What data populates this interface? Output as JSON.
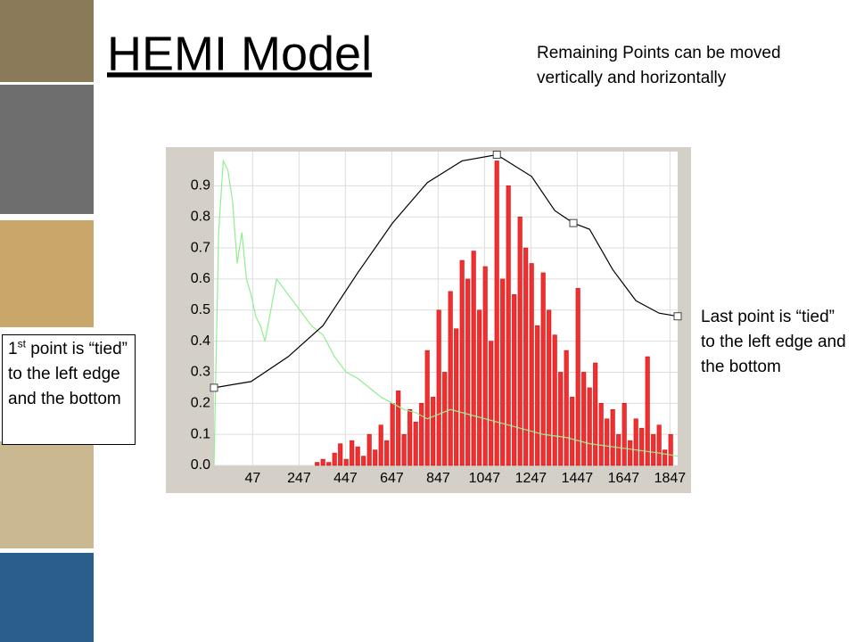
{
  "chart_data": {
    "type": "histogram-overlay",
    "title": "HEMI Model",
    "annotations": {
      "top": "Remaining Points can be moved vertically and horizontally",
      "right": "Last point is “tied” to the left edge and the bottom",
      "left_num": "1",
      "left_sup": "st",
      "left_rest": " point is “tied” to the left edge and the bottom"
    },
    "xlim": [
      -120,
      1880
    ],
    "ylim": [
      0,
      1.01
    ],
    "xticks": [
      47,
      247,
      447,
      647,
      847,
      1047,
      1247,
      1447,
      1647,
      1847
    ],
    "yticks": [
      {
        "value": 0,
        "label": "0.0"
      },
      0.1,
      0.2,
      0.3,
      0.4,
      0.5,
      0.6,
      0.7,
      0.8,
      0.9
    ],
    "grid": true,
    "bars": {
      "color": "#f03030",
      "x": [
        300,
        325,
        350,
        375,
        400,
        425,
        450,
        475,
        500,
        525,
        550,
        575,
        600,
        625,
        650,
        675,
        700,
        725,
        750,
        775,
        800,
        825,
        850,
        875,
        900,
        925,
        950,
        975,
        1000,
        1025,
        1050,
        1075,
        1100,
        1125,
        1150,
        1175,
        1200,
        1225,
        1250,
        1275,
        1300,
        1325,
        1350,
        1375,
        1400,
        1425,
        1450,
        1475,
        1500,
        1525,
        1550,
        1575,
        1600,
        1625,
        1650,
        1675,
        1700,
        1725,
        1750,
        1775,
        1800,
        1825,
        1850
      ],
      "values": [
        0,
        0.01,
        0.02,
        0.01,
        0.04,
        0.07,
        0.02,
        0.08,
        0.06,
        0.03,
        0.1,
        0.05,
        0.13,
        0.08,
        0.2,
        0.24,
        0.1,
        0.18,
        0.14,
        0.2,
        0.37,
        0.22,
        0.5,
        0.3,
        0.56,
        0.44,
        0.66,
        0.6,
        0.69,
        0.5,
        0.64,
        0.4,
        0.98,
        0.6,
        0.9,
        0.55,
        0.8,
        0.7,
        0.65,
        0.45,
        0.62,
        0.5,
        0.42,
        0.3,
        0.37,
        0.22,
        0.57,
        0.3,
        0.25,
        0.33,
        0.2,
        0.15,
        0.18,
        0.1,
        0.2,
        0.08,
        0.15,
        0.12,
        0.35,
        0.1,
        0.13,
        0.05,
        0.1
      ]
    },
    "series": [
      {
        "color": "#90ee90",
        "x": [
          -120,
          -100,
          -80,
          -60,
          -40,
          -20,
          0,
          20,
          40,
          60,
          80,
          100,
          150,
          200,
          250,
          300,
          350,
          400,
          450,
          500,
          550,
          600,
          650,
          700,
          750,
          800,
          900,
          1000,
          1100,
          1200,
          1300,
          1400,
          1500,
          1600,
          1700,
          1800,
          1880
        ],
        "values": [
          0,
          0.75,
          0.98,
          0.95,
          0.85,
          0.65,
          0.75,
          0.6,
          0.55,
          0.48,
          0.45,
          0.4,
          0.6,
          0.55,
          0.5,
          0.45,
          0.42,
          0.35,
          0.3,
          0.28,
          0.25,
          0.22,
          0.2,
          0.18,
          0.17,
          0.15,
          0.18,
          0.16,
          0.14,
          0.12,
          0.1,
          0.09,
          0.07,
          0.06,
          0.05,
          0.04,
          0.03
        ]
      },
      {
        "color": "#000000",
        "x": [
          -120,
          40,
          200,
          350,
          500,
          650,
          800,
          950,
          1100,
          1250,
          1350,
          1430,
          1500,
          1600,
          1700,
          1800,
          1880
        ],
        "values": [
          0.25,
          0.27,
          0.35,
          0.45,
          0.62,
          0.78,
          0.91,
          0.98,
          1.0,
          0.93,
          0.82,
          0.78,
          0.76,
          0.63,
          0.53,
          0.49,
          0.48
        ]
      }
    ],
    "control_points": {
      "x": [
        -120,
        1100,
        1430,
        1880
      ],
      "values": [
        0.25,
        1.0,
        0.78,
        0.48
      ]
    }
  }
}
